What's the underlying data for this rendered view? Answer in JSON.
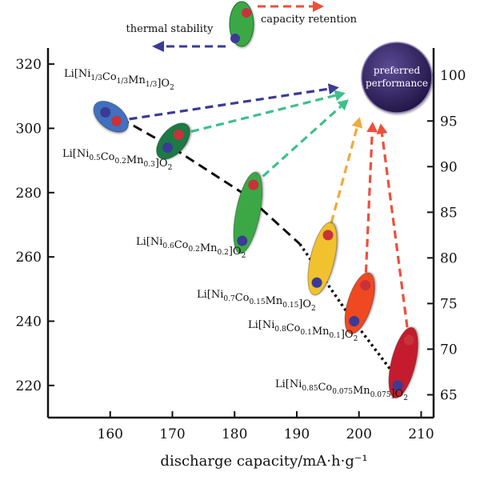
{
  "chart_data": {
    "type": "scatter",
    "xlabel": "discharge capacity/mA·h·g⁻¹",
    "ylabel_left": "",
    "ylabel_right": "",
    "xlim": [
      150,
      212
    ],
    "ylim_left": [
      210,
      325
    ],
    "ylim_right": [
      62.5,
      103
    ],
    "x_ticks": [
      160,
      170,
      180,
      190,
      200,
      210
    ],
    "y_left_ticks": [
      220,
      240,
      260,
      280,
      300,
      320
    ],
    "y_right_ticks": [
      65,
      70,
      75,
      80,
      85,
      90,
      95,
      100
    ],
    "legend": {
      "thermal_label": "thermal stability",
      "capacity_label": "capacity retention",
      "color_fill": "#3aa845"
    },
    "target": {
      "line1": "preferred",
      "line2": "performance",
      "x": 204,
      "y": 314,
      "color": "#2e1f5c"
    },
    "materials": [
      {
        "label": "Li[Ni1/3Co1/3Mn1/3]O2",
        "label_parts": [
          [
            "Li[Ni",
            ""
          ],
          [
            "1/3",
            "sub"
          ],
          [
            "Co",
            ""
          ],
          [
            "1/3",
            "sub"
          ],
          [
            "Mn",
            ""
          ],
          [
            "1/3",
            "sub"
          ],
          [
            "]O",
            ""
          ],
          [
            "2",
            "sub"
          ]
        ],
        "capacity": 160,
        "thermal_stability": 305,
        "capacity_retention": 95,
        "color": "#3f6fc0",
        "arrow_color": "#3b3b96"
      },
      {
        "label": "Li[Ni0.5Co0.2Mn0.3]O2",
        "label_parts": [
          [
            "Li[Ni",
            ""
          ],
          [
            "0.5",
            "sub"
          ],
          [
            "Co",
            ""
          ],
          [
            "0.2",
            "sub"
          ],
          [
            "Mn",
            ""
          ],
          [
            "0.3",
            "sub"
          ],
          [
            "]O",
            ""
          ],
          [
            "2",
            "sub"
          ]
        ],
        "capacity": 170,
        "thermal_stability": 294,
        "capacity_retention": 93.5,
        "color": "#1f7a45",
        "arrow_color": "#3fbf8c"
      },
      {
        "label": "Li[Ni0.6Co0.2Mn0.2]O2",
        "label_parts": [
          [
            "Li[Ni",
            ""
          ],
          [
            "0.6",
            "sub"
          ],
          [
            "Co",
            ""
          ],
          [
            "0.2",
            "sub"
          ],
          [
            "Mn",
            ""
          ],
          [
            "0.2",
            "sub"
          ],
          [
            "]O",
            ""
          ],
          [
            "2",
            "sub"
          ]
        ],
        "capacity": 182,
        "thermal_stability": 265,
        "capacity_retention": 88,
        "color": "#3aa845",
        "arrow_color": "#3fbf8c"
      },
      {
        "label": "Li[Ni0.7Co0.15Mn0.15]O2",
        "label_parts": [
          [
            "Li[Ni",
            ""
          ],
          [
            "0.7",
            "sub"
          ],
          [
            "Co",
            ""
          ],
          [
            "0.15",
            "sub"
          ],
          [
            "Mn",
            ""
          ],
          [
            "0.15",
            "sub"
          ],
          [
            "]O",
            ""
          ],
          [
            "2",
            "sub"
          ]
        ],
        "capacity": 194,
        "thermal_stability": 252,
        "capacity_retention": 82.5,
        "color": "#f2c12e",
        "arrow_color": "#f2a93b"
      },
      {
        "label": "Li[Ni0.8Co0.1Mn0.1]O2",
        "label_parts": [
          [
            "Li[Ni",
            ""
          ],
          [
            "0.8",
            "sub"
          ],
          [
            "Co",
            ""
          ],
          [
            "0.1",
            "sub"
          ],
          [
            "Mn",
            ""
          ],
          [
            "0.1",
            "sub"
          ],
          [
            "]O",
            ""
          ],
          [
            "2",
            "sub"
          ]
        ],
        "capacity": 200,
        "thermal_stability": 240,
        "capacity_retention": 77,
        "color": "#f04a24",
        "arrow_color": "#ee4f3a"
      },
      {
        "label": "Li[Ni0.85Co0.075Mn0.075]O2",
        "label_parts": [
          [
            "Li[Ni",
            ""
          ],
          [
            "0.85",
            "sub"
          ],
          [
            "Co",
            ""
          ],
          [
            "0.075",
            "sub"
          ],
          [
            "Mn",
            ""
          ],
          [
            "0.075",
            "sub"
          ],
          [
            "]O",
            ""
          ],
          [
            "2",
            "sub"
          ]
        ],
        "capacity": 207,
        "thermal_stability": 220,
        "capacity_retention": 71,
        "color": "#c41e2e",
        "arrow_color": "#ee4f3a"
      }
    ],
    "colors": {
      "thermal_dot": "#3b3b96",
      "capacity_dot": "#c8323a",
      "trend_line": "#111111"
    }
  }
}
